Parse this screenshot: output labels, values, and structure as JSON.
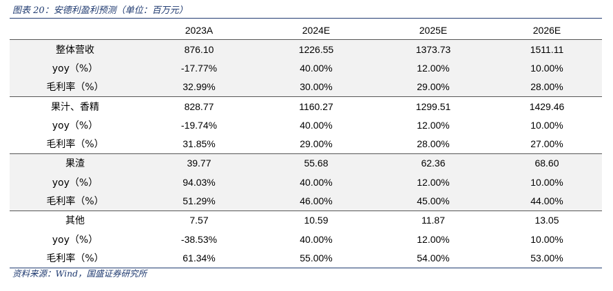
{
  "caption": "图表 20：安德利盈利预测（单位：百万元）",
  "columns": [
    "",
    "2023A",
    "2024E",
    "2025E",
    "2026E"
  ],
  "groups": [
    {
      "rows": [
        [
          "整体营收",
          "876.10",
          "1226.55",
          "1373.73",
          "1511.11"
        ],
        [
          "yoy（%）",
          "-17.77%",
          "40.00%",
          "12.00%",
          "10.00%"
        ],
        [
          "毛利率（%）",
          "32.99%",
          "30.00%",
          "29.00%",
          "28.00%"
        ]
      ]
    },
    {
      "rows": [
        [
          "果汁、香精",
          "828.77",
          "1160.27",
          "1299.51",
          "1429.46"
        ],
        [
          "yoy（%）",
          "-19.74%",
          "40.00%",
          "12.00%",
          "10.00%"
        ],
        [
          "毛利率（%）",
          "31.85%",
          "29.00%",
          "28.00%",
          "27.00%"
        ]
      ]
    },
    {
      "rows": [
        [
          "果渣",
          "39.77",
          "55.68",
          "62.36",
          "68.60"
        ],
        [
          "yoy（%）",
          "94.03%",
          "40.00%",
          "12.00%",
          "10.00%"
        ],
        [
          "毛利率（%）",
          "51.29%",
          "46.00%",
          "45.00%",
          "44.00%"
        ]
      ]
    },
    {
      "rows": [
        [
          "其他",
          "7.57",
          "10.59",
          "11.87",
          "13.05"
        ],
        [
          "yoy（%）",
          "-38.53%",
          "40.00%",
          "12.00%",
          "10.00%"
        ],
        [
          "毛利率（%）",
          "61.34%",
          "55.00%",
          "54.00%",
          "53.00%"
        ]
      ]
    }
  ],
  "source": "资料来源：Wind，国盛证券研究所",
  "colors": {
    "caption": "#1f3a70",
    "shaded_row": "#f2f2f2"
  }
}
